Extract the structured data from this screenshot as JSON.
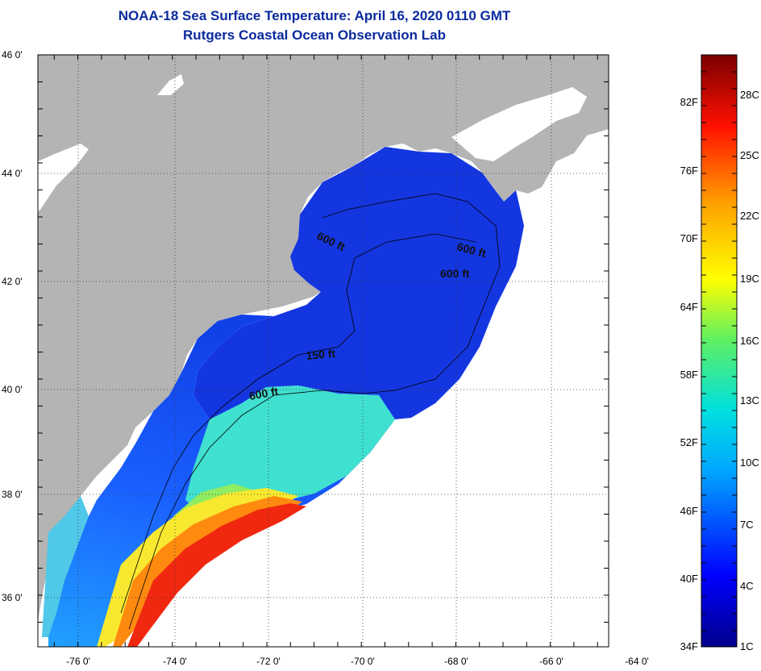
{
  "title": "NOAA-18 Sea Surface Temperature:  April 16, 2020 0110 GMT",
  "subtitle": "Rutgers Coastal Ocean Observation Lab",
  "lat_labels": [
    "46 0'",
    "44 0'",
    "42 0'",
    "40 0'",
    "38 0'",
    "36 0'"
  ],
  "lon_labels": [
    "-76 0'",
    "-74 0'",
    "-72 0'",
    "-70 0'",
    "-68 0'",
    "-66 0'",
    "-64 0'"
  ],
  "contour_labels": [
    "600 ft",
    "600 ft",
    "600 ft",
    "150 ft",
    "600 ft"
  ],
  "colorbar": {
    "fahrenheit": [
      "82F",
      "76F",
      "70F",
      "64F",
      "58F",
      "52F",
      "46F",
      "40F",
      "34F"
    ],
    "celsius": [
      "28C",
      "25C",
      "22C",
      "19C",
      "16C",
      "13C",
      "10C",
      "7C",
      "4C",
      "1C"
    ]
  },
  "colors": {
    "land": "#b4b4b4",
    "cloud": "#ffffff",
    "title": "#0a2a9e"
  }
}
